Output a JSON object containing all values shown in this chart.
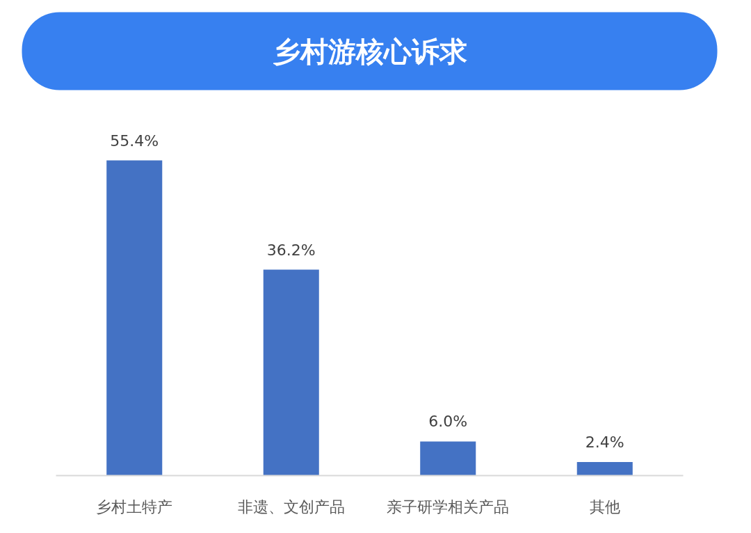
{
  "chart_data": {
    "type": "bar",
    "title": "乡村游核心诉求",
    "categories": [
      "乡村土特产",
      "非遗、文创产品",
      "亲子研学相关产品",
      "其他"
    ],
    "values": [
      55.4,
      36.2,
      6.0,
      2.4
    ],
    "color": "#4472c4",
    "value_labels": [
      "55.4%",
      "36.2%",
      "6.0%",
      "2.4%"
    ],
    "grid": false
  }
}
